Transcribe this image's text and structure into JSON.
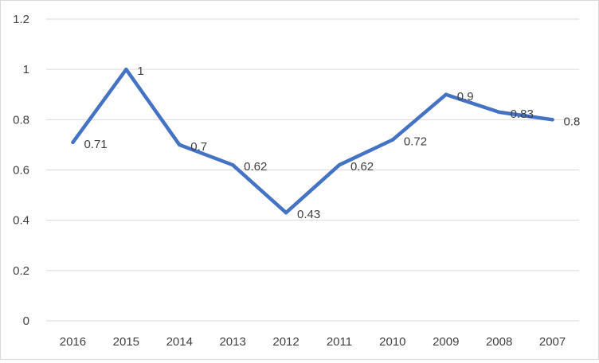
{
  "chart_data": {
    "type": "line",
    "categories": [
      "2016",
      "2015",
      "2014",
      "2013",
      "2012",
      "2011",
      "2010",
      "2009",
      "2008",
      "2007"
    ],
    "series": [
      {
        "values": [
          0.71,
          1,
          0.7,
          0.62,
          0.43,
          0.62,
          0.72,
          0.9,
          0.83,
          0.8
        ]
      }
    ],
    "data_labels": [
      "0.71",
      "1",
      "0.7",
      "0.62",
      "0.43",
      "0.62",
      "0.72",
      "0.9",
      "0.83",
      "0.8"
    ],
    "y_ticks": [
      "0",
      "0.2",
      "0.4",
      "0.6",
      "0.8",
      "1",
      "1.2"
    ],
    "ylim": [
      0,
      1.2
    ],
    "grid": true,
    "legend": "none",
    "colors": {
      "line": "#4472c4",
      "grid": "#d9d9d9",
      "text": "#404040"
    }
  }
}
